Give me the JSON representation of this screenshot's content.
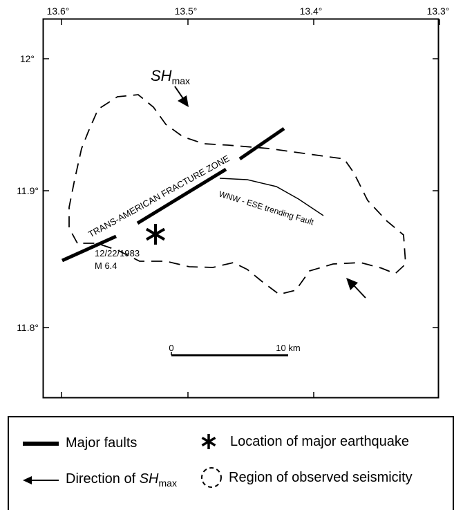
{
  "map": {
    "top_ticks": [
      "13.6°",
      "13.5°",
      "13.4°",
      "13.3°"
    ],
    "left_ticks": [
      "12°",
      "11.9°",
      "11.8°"
    ],
    "fault_zone_label": "TRANS-AMERICAN FRACTURE ZONE",
    "secondary_fault_label": "WNW - ESE trending Fault",
    "earthquake_date": "12/22/1983",
    "earthquake_magnitude": "M 6.4",
    "stress_label": {
      "main": "SH",
      "sub": "max"
    },
    "scale_bar": {
      "start_label": "0",
      "end_label": "10 km"
    }
  },
  "legend": {
    "major_faults": "Major faults",
    "earthquake": "Location of major earthquake",
    "direction_prefix": "Direction of ",
    "direction_main": "SH",
    "direction_sub": "max",
    "seismicity": "Region of observed seismicity",
    "icons": [
      "thick-line-icon",
      "star-icon",
      "arrow-left-icon",
      "dashed-circle-icon"
    ]
  }
}
